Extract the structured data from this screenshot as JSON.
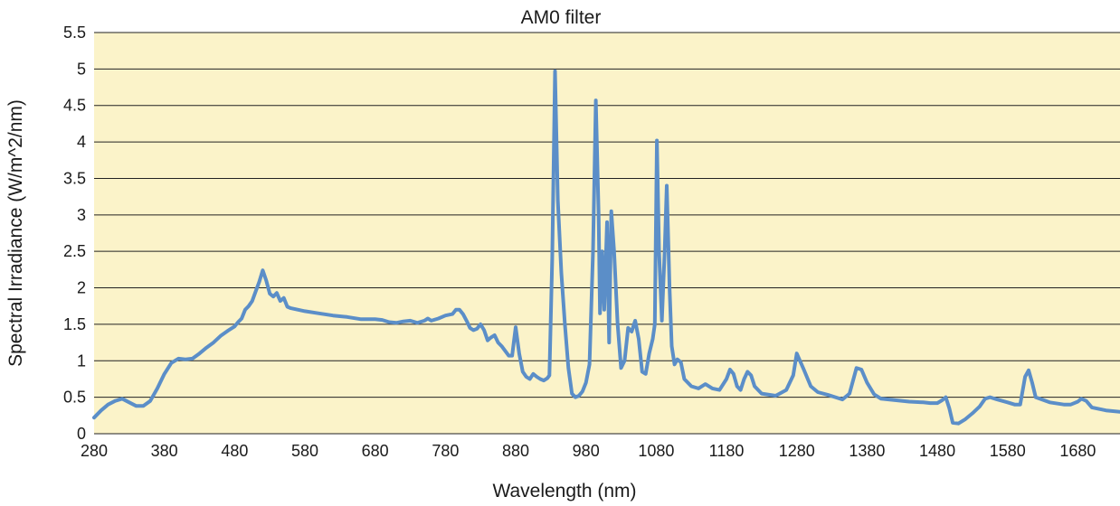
{
  "chart_data": {
    "type": "line",
    "title": "AM0 filter",
    "xlabel": "Wavelength (nm)",
    "ylabel": "Spectral Irradiance (W/m^2/nm)",
    "xlim": [
      280,
      1740
    ],
    "ylim": [
      0,
      5.5
    ],
    "x_ticks": [
      280,
      380,
      480,
      580,
      680,
      780,
      880,
      980,
      1080,
      1180,
      1280,
      1380,
      1480,
      1580,
      1680
    ],
    "y_ticks": [
      0,
      0.5,
      1,
      1.5,
      2,
      2.5,
      3,
      3.5,
      4,
      4.5,
      5,
      5.5
    ],
    "y_tick_labels": [
      "0",
      "0.5",
      "1",
      "1.5",
      "2",
      "2.5",
      "3",
      "3.5",
      "4",
      "4.5",
      "5",
      "5.5"
    ],
    "grid": "horizontal",
    "plot_background": "#fbf3c9",
    "line_color": "#5b8ec8",
    "series": [
      {
        "points": [
          [
            280,
            0.22
          ],
          [
            290,
            0.32
          ],
          [
            300,
            0.4
          ],
          [
            310,
            0.45
          ],
          [
            320,
            0.48
          ],
          [
            330,
            0.43
          ],
          [
            340,
            0.38
          ],
          [
            350,
            0.38
          ],
          [
            360,
            0.45
          ],
          [
            370,
            0.62
          ],
          [
            380,
            0.82
          ],
          [
            390,
            0.97
          ],
          [
            400,
            1.03
          ],
          [
            410,
            1.02
          ],
          [
            420,
            1.03
          ],
          [
            430,
            1.1
          ],
          [
            440,
            1.18
          ],
          [
            450,
            1.25
          ],
          [
            460,
            1.34
          ],
          [
            470,
            1.41
          ],
          [
            480,
            1.47
          ],
          [
            485,
            1.53
          ],
          [
            490,
            1.58
          ],
          [
            495,
            1.7
          ],
          [
            500,
            1.75
          ],
          [
            505,
            1.82
          ],
          [
            510,
            1.95
          ],
          [
            515,
            2.08
          ],
          [
            520,
            2.24
          ],
          [
            525,
            2.1
          ],
          [
            530,
            1.92
          ],
          [
            535,
            1.88
          ],
          [
            540,
            1.93
          ],
          [
            545,
            1.82
          ],
          [
            550,
            1.86
          ],
          [
            555,
            1.74
          ],
          [
            560,
            1.72
          ],
          [
            580,
            1.68
          ],
          [
            600,
            1.65
          ],
          [
            620,
            1.62
          ],
          [
            640,
            1.6
          ],
          [
            660,
            1.57
          ],
          [
            680,
            1.57
          ],
          [
            690,
            1.56
          ],
          [
            700,
            1.53
          ],
          [
            710,
            1.52
          ],
          [
            720,
            1.54
          ],
          [
            730,
            1.55
          ],
          [
            740,
            1.52
          ],
          [
            750,
            1.55
          ],
          [
            755,
            1.58
          ],
          [
            760,
            1.55
          ],
          [
            770,
            1.58
          ],
          [
            780,
            1.62
          ],
          [
            790,
            1.64
          ],
          [
            795,
            1.7
          ],
          [
            800,
            1.7
          ],
          [
            805,
            1.64
          ],
          [
            810,
            1.55
          ],
          [
            815,
            1.45
          ],
          [
            820,
            1.42
          ],
          [
            825,
            1.44
          ],
          [
            830,
            1.5
          ],
          [
            835,
            1.42
          ],
          [
            840,
            1.28
          ],
          [
            845,
            1.32
          ],
          [
            850,
            1.35
          ],
          [
            855,
            1.25
          ],
          [
            860,
            1.2
          ],
          [
            870,
            1.07
          ],
          [
            875,
            1.07
          ],
          [
            880,
            1.46
          ],
          [
            885,
            1.1
          ],
          [
            890,
            0.85
          ],
          [
            895,
            0.78
          ],
          [
            900,
            0.75
          ],
          [
            905,
            0.82
          ],
          [
            910,
            0.78
          ],
          [
            915,
            0.75
          ],
          [
            920,
            0.73
          ],
          [
            925,
            0.76
          ],
          [
            928,
            0.8
          ],
          [
            932,
            2.4
          ],
          [
            936,
            4.97
          ],
          [
            940,
            3.2
          ],
          [
            945,
            2.2
          ],
          [
            950,
            1.5
          ],
          [
            955,
            0.9
          ],
          [
            960,
            0.55
          ],
          [
            965,
            0.5
          ],
          [
            970,
            0.52
          ],
          [
            975,
            0.58
          ],
          [
            980,
            0.7
          ],
          [
            985,
            0.95
          ],
          [
            990,
            2.5
          ],
          [
            994,
            4.57
          ],
          [
            998,
            3.0
          ],
          [
            1000,
            1.65
          ],
          [
            1003,
            2.5
          ],
          [
            1006,
            1.7
          ],
          [
            1010,
            2.9
          ],
          [
            1013,
            1.25
          ],
          [
            1016,
            3.05
          ],
          [
            1020,
            2.5
          ],
          [
            1025,
            1.5
          ],
          [
            1030,
            0.9
          ],
          [
            1035,
            1.0
          ],
          [
            1040,
            1.45
          ],
          [
            1045,
            1.4
          ],
          [
            1050,
            1.55
          ],
          [
            1055,
            1.3
          ],
          [
            1060,
            0.85
          ],
          [
            1065,
            0.82
          ],
          [
            1070,
            1.1
          ],
          [
            1075,
            1.3
          ],
          [
            1078,
            1.5
          ],
          [
            1081,
            4.02
          ],
          [
            1084,
            2.5
          ],
          [
            1088,
            1.55
          ],
          [
            1092,
            2.5
          ],
          [
            1095,
            3.4
          ],
          [
            1099,
            2.0
          ],
          [
            1102,
            1.2
          ],
          [
            1106,
            0.95
          ],
          [
            1110,
            1.02
          ],
          [
            1115,
            0.98
          ],
          [
            1120,
            0.75
          ],
          [
            1130,
            0.65
          ],
          [
            1140,
            0.62
          ],
          [
            1150,
            0.68
          ],
          [
            1160,
            0.62
          ],
          [
            1170,
            0.6
          ],
          [
            1180,
            0.75
          ],
          [
            1185,
            0.88
          ],
          [
            1190,
            0.82
          ],
          [
            1195,
            0.65
          ],
          [
            1200,
            0.6
          ],
          [
            1205,
            0.75
          ],
          [
            1210,
            0.85
          ],
          [
            1215,
            0.8
          ],
          [
            1220,
            0.65
          ],
          [
            1230,
            0.55
          ],
          [
            1250,
            0.52
          ],
          [
            1265,
            0.6
          ],
          [
            1275,
            0.8
          ],
          [
            1280,
            1.1
          ],
          [
            1290,
            0.88
          ],
          [
            1300,
            0.65
          ],
          [
            1310,
            0.57
          ],
          [
            1325,
            0.53
          ],
          [
            1335,
            0.5
          ],
          [
            1345,
            0.47
          ],
          [
            1355,
            0.55
          ],
          [
            1365,
            0.9
          ],
          [
            1372,
            0.88
          ],
          [
            1380,
            0.7
          ],
          [
            1390,
            0.54
          ],
          [
            1400,
            0.48
          ],
          [
            1420,
            0.46
          ],
          [
            1440,
            0.44
          ],
          [
            1460,
            0.43
          ],
          [
            1470,
            0.42
          ],
          [
            1480,
            0.42
          ],
          [
            1487,
            0.46
          ],
          [
            1492,
            0.5
          ],
          [
            1497,
            0.35
          ],
          [
            1502,
            0.15
          ],
          [
            1510,
            0.14
          ],
          [
            1520,
            0.2
          ],
          [
            1530,
            0.28
          ],
          [
            1540,
            0.37
          ],
          [
            1548,
            0.48
          ],
          [
            1555,
            0.5
          ],
          [
            1565,
            0.47
          ],
          [
            1580,
            0.43
          ],
          [
            1590,
            0.4
          ],
          [
            1598,
            0.4
          ],
          [
            1605,
            0.78
          ],
          [
            1610,
            0.87
          ],
          [
            1615,
            0.7
          ],
          [
            1620,
            0.5
          ],
          [
            1640,
            0.43
          ],
          [
            1660,
            0.4
          ],
          [
            1670,
            0.4
          ],
          [
            1680,
            0.44
          ],
          [
            1685,
            0.48
          ],
          [
            1692,
            0.45
          ],
          [
            1700,
            0.36
          ],
          [
            1720,
            0.32
          ],
          [
            1740,
            0.3
          ]
        ]
      }
    ]
  }
}
